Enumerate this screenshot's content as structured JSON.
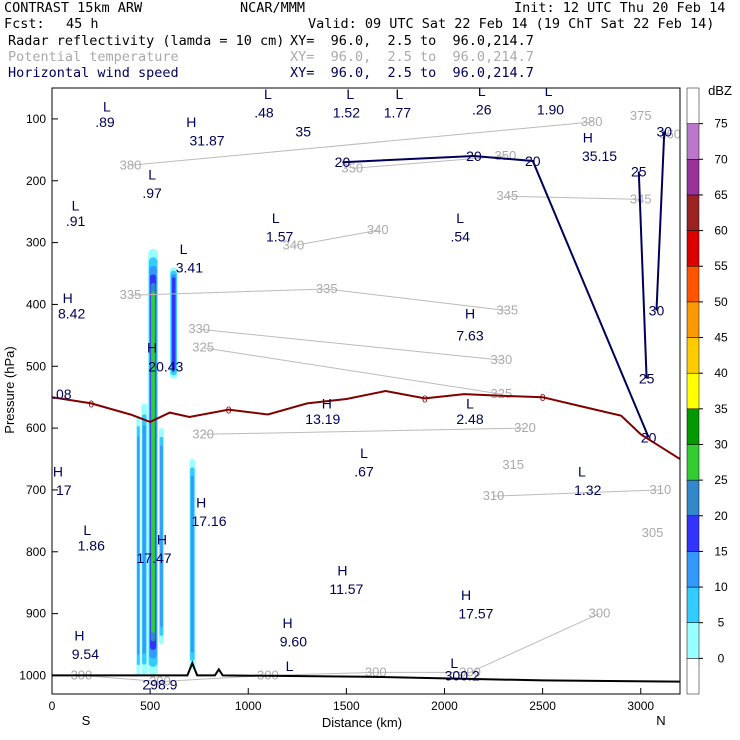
{
  "header": {
    "model": "CONTRAST 15km ARW",
    "org": "NCAR/MMM",
    "init": "Init: 12 UTC Thu 20 Feb 14",
    "fcst_label": "Fcst:",
    "fcst_value": "45 h",
    "valid": "Valid: 09 UTC Sat 22 Feb 14 (19 ChT Sat 22 Feb 14)",
    "fields": [
      {
        "name": "Radar reflectivity (lamda = 10 cm)",
        "xy": "XY=  96.0,  2.5 to  96.0,214.7",
        "color": "#000000"
      },
      {
        "name": "Potential temperature",
        "xy": "XY=  96.0,  2.5 to  96.0,214.7",
        "color": "#aaaaaa"
      },
      {
        "name": "Horizontal wind speed",
        "xy": "XY=  96.0,  2.5 to  96.0,214.7",
        "color": "#00005a"
      }
    ]
  },
  "chart_data": {
    "type": "heatmap",
    "xlabel": "Distance (km)",
    "ylabel": "Pressure (hPa)",
    "xlim": [
      0,
      3200
    ],
    "ylim": [
      1030,
      50
    ],
    "x_ticks": [
      0,
      500,
      1000,
      1500,
      2000,
      2500,
      3000
    ],
    "y_ticks": [
      100,
      200,
      300,
      400,
      500,
      600,
      700,
      800,
      900,
      1000
    ],
    "x_end_labels": {
      "left": "S",
      "right": "N"
    },
    "colorbar": {
      "unit": "dBZ",
      "levels": [
        0,
        5,
        10,
        15,
        20,
        25,
        30,
        35,
        40,
        45,
        50,
        55,
        60,
        65,
        70,
        75
      ],
      "colors": [
        "#ffffff",
        "#99ffff",
        "#33ccff",
        "#3399ff",
        "#3333ff",
        "#3388cc",
        "#33cc33",
        "#009900",
        "#ffff00",
        "#ffcc00",
        "#ff9900",
        "#ff5500",
        "#dd0000",
        "#992222",
        "#993399",
        "#bb77cc",
        "#ffffff"
      ]
    },
    "reflectivity_cells": [
      {
        "x": [
          430,
          450
        ],
        "p": [
          580,
          1000
        ],
        "max_dbz": 15
      },
      {
        "x": [
          455,
          485
        ],
        "p": [
          560,
          1000
        ],
        "max_dbz": 15
      },
      {
        "x": [
          490,
          540
        ],
        "p": [
          310,
          1000
        ],
        "max_dbz": 30
      },
      {
        "x": [
          545,
          570
        ],
        "p": [
          600,
          950
        ],
        "max_dbz": 15
      },
      {
        "x": [
          600,
          640
        ],
        "p": [
          340,
          520
        ],
        "max_dbz": 20
      },
      {
        "x": [
          700,
          730
        ],
        "p": [
          650,
          990
        ],
        "max_dbz": 15
      }
    ],
    "theta_contours": [
      {
        "level": 300,
        "label_points": [
          [
            150,
            1000
          ],
          [
            1100,
            1000
          ],
          [
            1650,
            995
          ],
          [
            2130,
            995
          ],
          [
            2790,
            900
          ],
          [
            550,
            1010
          ]
        ]
      },
      {
        "level": 305,
        "label_points": [
          [
            3060,
            770
          ]
        ]
      },
      {
        "level": 310,
        "label_points": [
          [
            2250,
            710
          ],
          [
            3100,
            700
          ]
        ]
      },
      {
        "level": 315,
        "label_points": [
          [
            2350,
            660
          ]
        ]
      },
      {
        "level": 320,
        "label_points": [
          [
            770,
            610
          ],
          [
            2410,
            600
          ]
        ]
      },
      {
        "level": 325,
        "label_points": [
          [
            770,
            470
          ],
          [
            2290,
            545
          ]
        ]
      },
      {
        "level": 330,
        "label_points": [
          [
            750,
            440
          ],
          [
            2290,
            490
          ]
        ]
      },
      {
        "level": 335,
        "label_points": [
          [
            400,
            385
          ],
          [
            1400,
            375
          ],
          [
            2320,
            410
          ]
        ]
      },
      {
        "level": 340,
        "label_points": [
          [
            1230,
            305
          ],
          [
            1660,
            280
          ]
        ]
      },
      {
        "level": 345,
        "label_points": [
          [
            2320,
            225
          ],
          [
            3000,
            230
          ]
        ]
      },
      {
        "level": 350,
        "label_points": [
          [
            1530,
            180
          ],
          [
            2310,
            160
          ]
        ]
      },
      {
        "level": 360,
        "label_points": [
          [
            3150,
            125
          ]
        ]
      },
      {
        "level": 375,
        "label_points": [
          [
            3000,
            95
          ]
        ]
      },
      {
        "level": 380,
        "label_points": [
          [
            400,
            175
          ],
          [
            2750,
            105
          ]
        ]
      }
    ],
    "wind_speed_contours": [
      {
        "level": 20,
        "label_points": [
          [
            1480,
            170
          ],
          [
            2150,
            160
          ],
          [
            2450,
            168
          ],
          [
            3040,
            615
          ]
        ]
      },
      {
        "level": 25,
        "label_points": [
          [
            2990,
            185
          ],
          [
            3030,
            520
          ]
        ]
      },
      {
        "level": 30,
        "label_points": [
          [
            3120,
            120
          ],
          [
            3080,
            410
          ]
        ]
      },
      {
        "level": 35,
        "label_points": [
          [
            1280,
            120
          ]
        ]
      }
    ],
    "freezing_level": {
      "label": "0",
      "x": [
        0,
        200,
        400,
        500,
        600,
        700,
        900,
        1100,
        1300,
        1500,
        1700,
        1900,
        2100,
        2300,
        2500,
        2700,
        2900,
        3000,
        3100,
        3200
      ],
      "p": [
        550,
        560,
        578,
        590,
        575,
        582,
        570,
        578,
        560,
        553,
        540,
        552,
        545,
        548,
        550,
        565,
        580,
        610,
        630,
        650
      ]
    },
    "terrain": {
      "x": [
        0,
        500,
        690,
        715,
        740,
        830,
        850,
        870,
        1600,
        2500,
        3200
      ],
      "p": [
        1000,
        1000,
        1000,
        980,
        1000,
        1000,
        990,
        1000,
        1002,
        1008,
        1010
      ]
    },
    "annotations": [
      {
        "text": "L",
        "x": 280,
        "p": 80
      },
      {
        "text": ".89",
        "x": 270,
        "p": 105
      },
      {
        "text": "H",
        "x": 710,
        "p": 105
      },
      {
        "text": "31.87",
        "x": 790,
        "p": 135
      },
      {
        "text": "L",
        "x": 1100,
        "p": 60
      },
      {
        "text": ".48",
        "x": 1080,
        "p": 90
      },
      {
        "text": "L",
        "x": 1520,
        "p": 60
      },
      {
        "text": "1.52",
        "x": 1500,
        "p": 90
      },
      {
        "text": "L",
        "x": 1770,
        "p": 60
      },
      {
        "text": "1.77",
        "x": 1760,
        "p": 90
      },
      {
        "text": "L",
        "x": 2190,
        "p": 55
      },
      {
        "text": ".26",
        "x": 2190,
        "p": 85
      },
      {
        "text": "L",
        "x": 2530,
        "p": 55
      },
      {
        "text": "1.90",
        "x": 2540,
        "p": 85
      },
      {
        "text": "H",
        "x": 2730,
        "p": 130
      },
      {
        "text": "35.15",
        "x": 2790,
        "p": 160
      },
      {
        "text": "L",
        "x": 510,
        "p": 190
      },
      {
        "text": ".97",
        "x": 510,
        "p": 220
      },
      {
        "text": "L",
        "x": 120,
        "p": 240
      },
      {
        "text": ".91",
        "x": 120,
        "p": 265
      },
      {
        "text": "L",
        "x": 1140,
        "p": 260
      },
      {
        "text": "1.57",
        "x": 1160,
        "p": 290
      },
      {
        "text": "L",
        "x": 2080,
        "p": 260
      },
      {
        "text": ".54",
        "x": 2080,
        "p": 290
      },
      {
        "text": "L",
        "x": 670,
        "p": 310
      },
      {
        "text": "3.41",
        "x": 700,
        "p": 340
      },
      {
        "text": "H",
        "x": 80,
        "p": 390
      },
      {
        "text": "8.42",
        "x": 100,
        "p": 415
      },
      {
        "text": "H",
        "x": 2130,
        "p": 415
      },
      {
        "text": "7.63",
        "x": 2130,
        "p": 450
      },
      {
        "text": "H",
        "x": 510,
        "p": 470
      },
      {
        "text": "20.43",
        "x": 580,
        "p": 500
      },
      {
        "text": ".08",
        "x": 50,
        "p": 545
      },
      {
        "text": "H",
        "x": 1400,
        "p": 560
      },
      {
        "text": "13.19",
        "x": 1380,
        "p": 585
      },
      {
        "text": "L",
        "x": 2130,
        "p": 560
      },
      {
        "text": "2.48",
        "x": 2130,
        "p": 585
      },
      {
        "text": "L",
        "x": 1590,
        "p": 640
      },
      {
        "text": ".67",
        "x": 1590,
        "p": 670
      },
      {
        "text": "L",
        "x": 2700,
        "p": 670
      },
      {
        "text": "1.32",
        "x": 2730,
        "p": 700
      },
      {
        "text": "H",
        "x": 30,
        "p": 670
      },
      {
        "text": "17",
        "x": 60,
        "p": 700
      },
      {
        "text": "H",
        "x": 760,
        "p": 720
      },
      {
        "text": "17.16",
        "x": 800,
        "p": 750
      },
      {
        "text": "L",
        "x": 180,
        "p": 765
      },
      {
        "text": "1.86",
        "x": 200,
        "p": 790
      },
      {
        "text": "H",
        "x": 560,
        "p": 780
      },
      {
        "text": "17.47",
        "x": 520,
        "p": 810
      },
      {
        "text": "H",
        "x": 1480,
        "p": 830
      },
      {
        "text": "11.57",
        "x": 1500,
        "p": 860
      },
      {
        "text": "H",
        "x": 2110,
        "p": 870
      },
      {
        "text": "17.57",
        "x": 2160,
        "p": 900
      },
      {
        "text": "H",
        "x": 1200,
        "p": 915
      },
      {
        "text": "9.60",
        "x": 1230,
        "p": 945
      },
      {
        "text": "H",
        "x": 140,
        "p": 935
      },
      {
        "text": "9.54",
        "x": 170,
        "p": 965
      },
      {
        "text": "L",
        "x": 1210,
        "p": 985
      },
      {
        "text": "L",
        "x": 2050,
        "p": 980
      },
      {
        "text": "300.2",
        "x": 2090,
        "p": 1000
      },
      {
        "text": "298.9",
        "x": 550,
        "p": 1015
      }
    ]
  }
}
